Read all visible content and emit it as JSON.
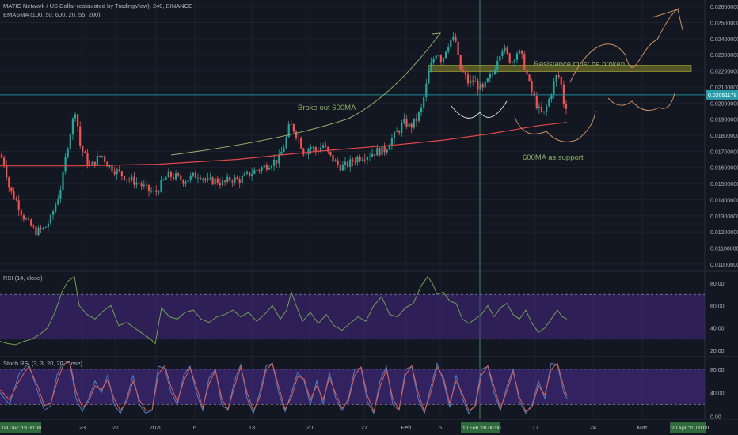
{
  "header": {
    "title": "MATIC Network / US Dollar (calculated by TradingView), 240, BINANCE",
    "indicator": "EMASMA (100, 50, 600, 20, 55, 200)"
  },
  "colors": {
    "background": "#131722",
    "grid": "#1e2230",
    "up": "#26a69a",
    "down": "#ef5350",
    "ma600": "#e04848",
    "annotation": "#8fae6a",
    "drawing": "#c89062",
    "price_line": "#1c8d9a",
    "crosshair": "#3c8a5c",
    "rsi_line": "#6f9f55",
    "band_fill": "#4a2a8a",
    "stoch_k": "#4f80c7",
    "stoch_d": "#e0604f",
    "resistance_zone": "#8a8a2a",
    "axis_text": "#b2b5be",
    "date_highlight": "#2f6b3a"
  },
  "chart_data": [
    {
      "type": "candlestick",
      "title": "MATIC Network / US Dollar (calculated by TradingView), 240, BINANCE",
      "ylim": [
        0.0096,
        0.0264
      ],
      "y_ticks": [
        "0.02600000",
        "0.02500000",
        "0.02400000",
        "0.02300000",
        "0.02200000",
        "0.02100000",
        "0.02000000",
        "0.01900000",
        "0.01800000",
        "0.01700000",
        "0.01600000",
        "0.01500000",
        "0.01400000",
        "0.01300000",
        "0.01200000",
        "0.01100000",
        "0.01000000"
      ],
      "x_ticks": [
        "23",
        "27",
        "2020",
        "6",
        "13",
        "20",
        "27",
        "Feb",
        "5",
        "17",
        "24",
        "Mar"
      ],
      "date_badges": {
        "start": "09 Dec '19  00:00",
        "cursor": "10 Feb '20  00:00",
        "end": "20 Apr '20  00:00"
      },
      "current_price": "0.02051178",
      "price_path": [
        [
          0,
          0.0168
        ],
        [
          6,
          0.0162
        ],
        [
          12,
          0.0146
        ],
        [
          20,
          0.014
        ],
        [
          28,
          0.0131
        ],
        [
          36,
          0.0125
        ],
        [
          46,
          0.012
        ],
        [
          56,
          0.0122
        ],
        [
          64,
          0.0128
        ],
        [
          72,
          0.014
        ],
        [
          78,
          0.015
        ],
        [
          84,
          0.017
        ],
        [
          90,
          0.0185
        ],
        [
          96,
          0.0198
        ],
        [
          100,
          0.0175
        ],
        [
          106,
          0.0168
        ],
        [
          114,
          0.016
        ],
        [
          122,
          0.0165
        ],
        [
          128,
          0.0168
        ],
        [
          136,
          0.0162
        ],
        [
          146,
          0.0158
        ],
        [
          156,
          0.0155
        ],
        [
          166,
          0.0152
        ],
        [
          176,
          0.015
        ],
        [
          186,
          0.0146
        ],
        [
          196,
          0.0144
        ],
        [
          204,
          0.015
        ],
        [
          212,
          0.0155
        ],
        [
          222,
          0.0154
        ],
        [
          232,
          0.0152
        ],
        [
          242,
          0.0154
        ],
        [
          252,
          0.0156
        ],
        [
          262,
          0.0151
        ],
        [
          272,
          0.0152
        ],
        [
          282,
          0.015
        ],
        [
          292,
          0.0153
        ],
        [
          302,
          0.0152
        ],
        [
          312,
          0.0155
        ],
        [
          322,
          0.0158
        ],
        [
          332,
          0.016
        ],
        [
          342,
          0.0163
        ],
        [
          352,
          0.0165
        ],
        [
          360,
          0.0175
        ],
        [
          366,
          0.0187
        ],
        [
          372,
          0.0183
        ],
        [
          378,
          0.0177
        ],
        [
          384,
          0.0169
        ],
        [
          392,
          0.0173
        ],
        [
          400,
          0.017
        ],
        [
          408,
          0.0174
        ],
        [
          416,
          0.0167
        ],
        [
          424,
          0.0163
        ],
        [
          432,
          0.016
        ],
        [
          440,
          0.0162
        ],
        [
          448,
          0.0165
        ],
        [
          456,
          0.0167
        ],
        [
          466,
          0.0168
        ],
        [
          476,
          0.017
        ],
        [
          486,
          0.0171
        ],
        [
          494,
          0.0177
        ],
        [
          502,
          0.0182
        ],
        [
          510,
          0.0188
        ],
        [
          518,
          0.0185
        ],
        [
          526,
          0.019
        ],
        [
          532,
          0.0196
        ],
        [
          536,
          0.0205
        ],
        [
          542,
          0.022
        ],
        [
          548,
          0.0228
        ],
        [
          552,
          0.0233
        ],
        [
          558,
          0.0226
        ],
        [
          564,
          0.0235
        ],
        [
          570,
          0.024
        ],
        [
          576,
          0.0238
        ],
        [
          580,
          0.0222
        ],
        [
          586,
          0.0218
        ],
        [
          592,
          0.0212
        ],
        [
          598,
          0.0214
        ],
        [
          604,
          0.021
        ],
        [
          610,
          0.0208
        ],
        [
          616,
          0.0214
        ],
        [
          622,
          0.0218
        ],
        [
          628,
          0.0228
        ],
        [
          634,
          0.0235
        ],
        [
          640,
          0.023
        ],
        [
          646,
          0.0225
        ],
        [
          652,
          0.0232
        ],
        [
          658,
          0.023
        ],
        [
          664,
          0.022
        ],
        [
          668,
          0.0212
        ],
        [
          674,
          0.0204
        ],
        [
          680,
          0.0196
        ],
        [
          686,
          0.0192
        ],
        [
          692,
          0.02
        ],
        [
          698,
          0.021
        ],
        [
          704,
          0.0218
        ],
        [
          708,
          0.0214
        ],
        [
          712,
          0.02
        ],
        [
          716,
          0.0198
        ],
        [
          720,
          0.0205
        ]
      ],
      "ma600": [
        [
          0,
          0.0161
        ],
        [
          100,
          0.0161
        ],
        [
          200,
          0.0162
        ],
        [
          300,
          0.0165
        ],
        [
          400,
          0.017
        ],
        [
          500,
          0.0174
        ],
        [
          560,
          0.0177
        ],
        [
          620,
          0.0181
        ],
        [
          680,
          0.0186
        ],
        [
          716,
          0.0188
        ]
      ],
      "annotations": [
        {
          "text": "Broke out  600MA"
        },
        {
          "text": "Resistance must be broken"
        },
        {
          "text": "600MA as support"
        }
      ]
    },
    {
      "type": "line",
      "title": "RSI (14, close)",
      "ylim": [
        15,
        90
      ],
      "band": [
        30,
        70
      ],
      "y_ticks": [
        20,
        40,
        60,
        80
      ],
      "x_values": [
        0,
        10,
        20,
        30,
        40,
        50,
        60,
        70,
        78,
        86,
        94,
        100,
        110,
        120,
        130,
        140,
        150,
        160,
        170,
        180,
        190,
        196,
        204,
        214,
        224,
        234,
        244,
        254,
        264,
        274,
        284,
        294,
        304,
        314,
        324,
        334,
        344,
        354,
        362,
        368,
        374,
        382,
        392,
        402,
        412,
        422,
        432,
        442,
        452,
        462,
        472,
        482,
        492,
        502,
        512,
        522,
        532,
        540,
        546,
        552,
        560,
        568,
        576,
        584,
        592,
        600,
        608,
        616,
        624,
        632,
        640,
        648,
        656,
        664,
        672,
        680,
        688,
        696,
        704,
        710,
        716
      ],
      "values": [
        28,
        26,
        25,
        28,
        30,
        34,
        40,
        55,
        72,
        82,
        86,
        60,
        52,
        48,
        55,
        60,
        42,
        45,
        40,
        35,
        30,
        26,
        58,
        50,
        48,
        54,
        56,
        48,
        45,
        50,
        52,
        56,
        50,
        54,
        46,
        52,
        60,
        48,
        56,
        72,
        60,
        46,
        54,
        44,
        52,
        42,
        38,
        44,
        50,
        46,
        60,
        68,
        52,
        50,
        58,
        62,
        78,
        86,
        80,
        70,
        72,
        64,
        62,
        48,
        44,
        48,
        52,
        60,
        50,
        58,
        62,
        52,
        48,
        56,
        44,
        36,
        40,
        48,
        56,
        50,
        48
      ]
    },
    {
      "type": "line",
      "title": "Stoch RSI (3, 3, 20, 20, close)",
      "ylim": [
        -5,
        100
      ],
      "band": [
        20,
        80
      ],
      "y_ticks": [
        0,
        40,
        80
      ],
      "x_values": [
        0,
        12,
        24,
        36,
        48,
        56,
        64,
        72,
        80,
        88,
        96,
        104,
        112,
        120,
        128,
        136,
        144,
        152,
        160,
        168,
        176,
        184,
        192,
        200,
        208,
        216,
        224,
        232,
        240,
        248,
        256,
        264,
        272,
        280,
        288,
        296,
        304,
        312,
        320,
        328,
        336,
        344,
        352,
        360,
        368,
        376,
        384,
        392,
        400,
        408,
        416,
        424,
        432,
        440,
        448,
        456,
        464,
        472,
        480,
        488,
        496,
        504,
        512,
        520,
        528,
        536,
        544,
        552,
        560,
        568,
        576,
        584,
        592,
        600,
        608,
        616,
        624,
        632,
        640,
        648,
        656,
        664,
        672,
        680,
        688,
        696,
        704,
        712,
        716
      ],
      "k": [
        40,
        20,
        72,
        90,
        40,
        10,
        18,
        70,
        94,
        92,
        30,
        8,
        30,
        60,
        40,
        70,
        20,
        5,
        30,
        70,
        20,
        5,
        10,
        85,
        82,
        40,
        20,
        70,
        85,
        40,
        10,
        65,
        80,
        20,
        10,
        60,
        88,
        30,
        5,
        40,
        85,
        90,
        40,
        8,
        40,
        75,
        60,
        20,
        60,
        20,
        75,
        30,
        10,
        30,
        80,
        82,
        25,
        5,
        60,
        85,
        20,
        10,
        80,
        85,
        30,
        5,
        50,
        90,
        60,
        15,
        70,
        30,
        5,
        20,
        80,
        85,
        40,
        10,
        50,
        80,
        25,
        5,
        20,
        60,
        30,
        90,
        88,
        40,
        30
      ],
      "d": [
        45,
        28,
        60,
        85,
        50,
        18,
        22,
        58,
        88,
        94,
        42,
        15,
        25,
        52,
        45,
        62,
        30,
        10,
        25,
        60,
        28,
        10,
        10,
        72,
        86,
        50,
        25,
        60,
        82,
        50,
        15,
        55,
        78,
        30,
        12,
        50,
        84,
        40,
        10,
        32,
        78,
        90,
        50,
        12,
        32,
        68,
        64,
        28,
        52,
        28,
        66,
        38,
        14,
        26,
        70,
        84,
        35,
        8,
        50,
        80,
        30,
        12,
        70,
        86,
        40,
        8,
        40,
        84,
        66,
        22,
        60,
        38,
        10,
        16,
        70,
        86,
        50,
        14,
        42,
        76,
        32,
        8,
        16,
        52,
        36,
        80,
        90,
        50,
        34
      ]
    }
  ]
}
